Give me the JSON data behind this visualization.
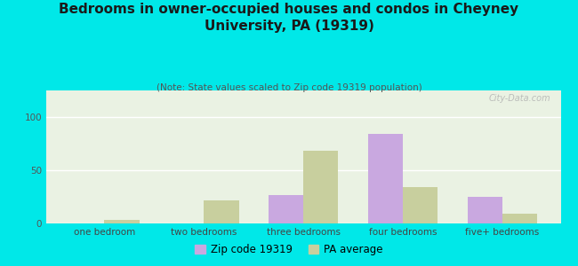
{
  "title": "Bedrooms in owner-occupied houses and condos in Cheyney\nUniversity, PA (19319)",
  "subtitle": "(Note: State values scaled to Zip code 19319 population)",
  "categories": [
    "one bedroom",
    "two bedrooms",
    "three bedrooms",
    "four bedrooms",
    "five+ bedrooms"
  ],
  "zip_values": [
    0,
    0,
    27,
    84,
    25
  ],
  "pa_values": [
    3,
    22,
    68,
    34,
    9
  ],
  "zip_color": "#c9a8e0",
  "pa_color": "#c8cf9e",
  "background_outer": "#00e8e8",
  "background_chart_top": "#f0f5e8",
  "background_chart_bottom": "#e0f0e0",
  "ylim": [
    0,
    125
  ],
  "yticks": [
    0,
    50,
    100
  ],
  "bar_width": 0.35,
  "legend_zip_label": "Zip code 19319",
  "legend_pa_label": "PA average",
  "watermark": "City-Data.com",
  "title_fontsize": 11,
  "subtitle_fontsize": 7.5,
  "tick_fontsize": 7.5,
  "legend_fontsize": 8.5
}
